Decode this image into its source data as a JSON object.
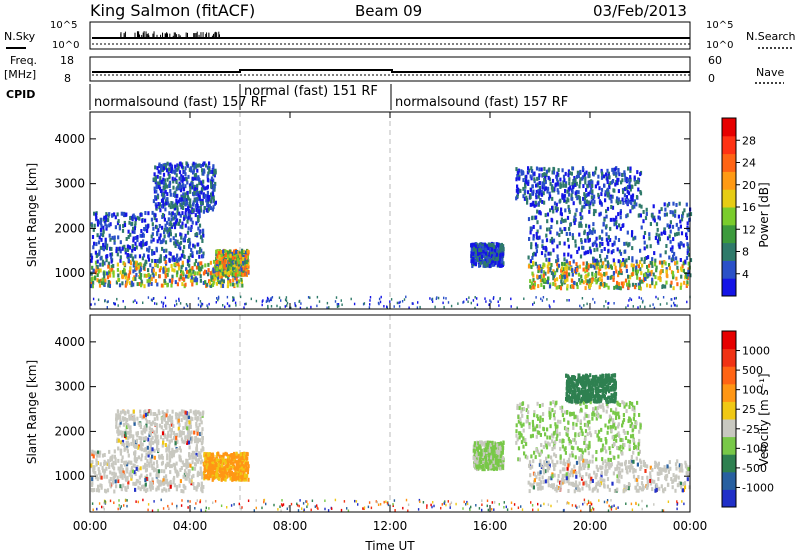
{
  "header": {
    "station": "King Salmon (fitACF)",
    "beam": "Beam 09",
    "date": "03/Feb/2013"
  },
  "top_panels": {
    "nsky_label": "N.Sky",
    "nsearch_label": "N.Search",
    "nsky_ticks": [
      "10^5",
      "10^0"
    ],
    "nsearch_ticks": [
      "10^5",
      "10^0"
    ],
    "freq_label": "Freq.",
    "freq_unit": "[MHz]",
    "freq_ticks": [
      "18",
      "8"
    ],
    "nave_label": "Nave",
    "nave_ticks": [
      "60",
      "0"
    ],
    "cpid_label": "CPID",
    "cpid_segments": [
      {
        "label": "normalsound (fast) 157 RF",
        "start": 0
      },
      {
        "label": "normal (fast) 151 RF",
        "start": 6
      },
      {
        "label": "normalsound (fast) 157 RF",
        "start": 12
      }
    ]
  },
  "chart_data": [
    {
      "type": "heatmap",
      "parameter": "power",
      "ylabel": "Slant Range [km]",
      "ylim": [
        200,
        4600
      ],
      "y_ticks": [
        1000,
        2000,
        3000,
        4000
      ],
      "xlim": [
        0,
        24
      ],
      "x_ticks": [
        0,
        4,
        8,
        12,
        16,
        20,
        24
      ],
      "mode_changes_ut": [
        6,
        12
      ],
      "colorbar": {
        "label": "Power [dB]",
        "ticks": [
          "4",
          "8",
          "12",
          "16",
          "20",
          "24",
          "28"
        ],
        "colors": [
          "#1414e6",
          "#2a50c8",
          "#2f7a6a",
          "#3c9a3c",
          "#7acc2c",
          "#e6cc14",
          "#ff9a14",
          "#ff6414",
          "#ff3214",
          "#e60000"
        ]
      },
      "scatter_regions": [
        {
          "x": [
            0,
            6.2
          ],
          "y": [
            750,
            1300
          ],
          "level": "high"
        },
        {
          "x": [
            0,
            4.5
          ],
          "y": [
            1300,
            2400
          ],
          "level": "low"
        },
        {
          "x": [
            2.5,
            5
          ],
          "y": [
            2400,
            3500
          ],
          "level": "low"
        },
        {
          "x": [
            5,
            6.3
          ],
          "y": [
            1000,
            1550
          ],
          "level": "high"
        },
        {
          "x": [
            15.2,
            16.5
          ],
          "y": [
            1200,
            1700
          ],
          "level": "low"
        },
        {
          "x": [
            17.5,
            24
          ],
          "y": [
            700,
            1300
          ],
          "level": "high"
        },
        {
          "x": [
            17.5,
            24
          ],
          "y": [
            1300,
            2600
          ],
          "level": "low"
        },
        {
          "x": [
            17,
            22
          ],
          "y": [
            2600,
            3400
          ],
          "level": "low"
        },
        {
          "x": [
            0,
            24
          ],
          "y": [
            250,
            500
          ],
          "level": "sparse"
        }
      ]
    },
    {
      "type": "heatmap",
      "parameter": "velocity",
      "ylabel": "Slant Range [km]",
      "ylim": [
        200,
        4600
      ],
      "y_ticks": [
        1000,
        2000,
        3000,
        4000
      ],
      "xlim": [
        0,
        24
      ],
      "x_ticks": [
        0,
        4,
        8,
        12,
        16,
        20,
        24
      ],
      "x_tick_labels": [
        "00:00",
        "04:00",
        "08:00",
        "12:00",
        "16:00",
        "20:00",
        "00:00"
      ],
      "xlabel": "Time UT",
      "mode_changes_ut": [
        6,
        12
      ],
      "colorbar": {
        "label": "Velocity [m s⁻¹]",
        "ticks": [
          "1000",
          "500",
          "100",
          "25",
          "-25",
          "-100",
          "-500",
          "-1000"
        ],
        "colors": [
          "#2030c8",
          "#2860a0",
          "#2e8050",
          "#78c848",
          "#c8c8c0",
          "#f0c814",
          "#ff9614",
          "#ff6414",
          "#f03214",
          "#e60000"
        ]
      },
      "scatter_regions": [
        {
          "x": [
            0,
            4.5
          ],
          "y": [
            700,
            1600
          ],
          "level": "grey"
        },
        {
          "x": [
            1,
            4.5
          ],
          "y": [
            1600,
            2500
          ],
          "level": "grey"
        },
        {
          "x": [
            4.5,
            6.3
          ],
          "y": [
            950,
            1550
          ],
          "level": "orange"
        },
        {
          "x": [
            15.3,
            16.5
          ],
          "y": [
            1200,
            1800
          ],
          "level": "green"
        },
        {
          "x": [
            17.5,
            24
          ],
          "y": [
            700,
            1400
          ],
          "level": "grey"
        },
        {
          "x": [
            17,
            22
          ],
          "y": [
            1400,
            2700
          ],
          "level": "green"
        },
        {
          "x": [
            19,
            21
          ],
          "y": [
            2700,
            3300
          ],
          "level": "teal"
        },
        {
          "x": [
            0,
            24
          ],
          "y": [
            250,
            500
          ],
          "level": "sparse"
        }
      ]
    }
  ]
}
